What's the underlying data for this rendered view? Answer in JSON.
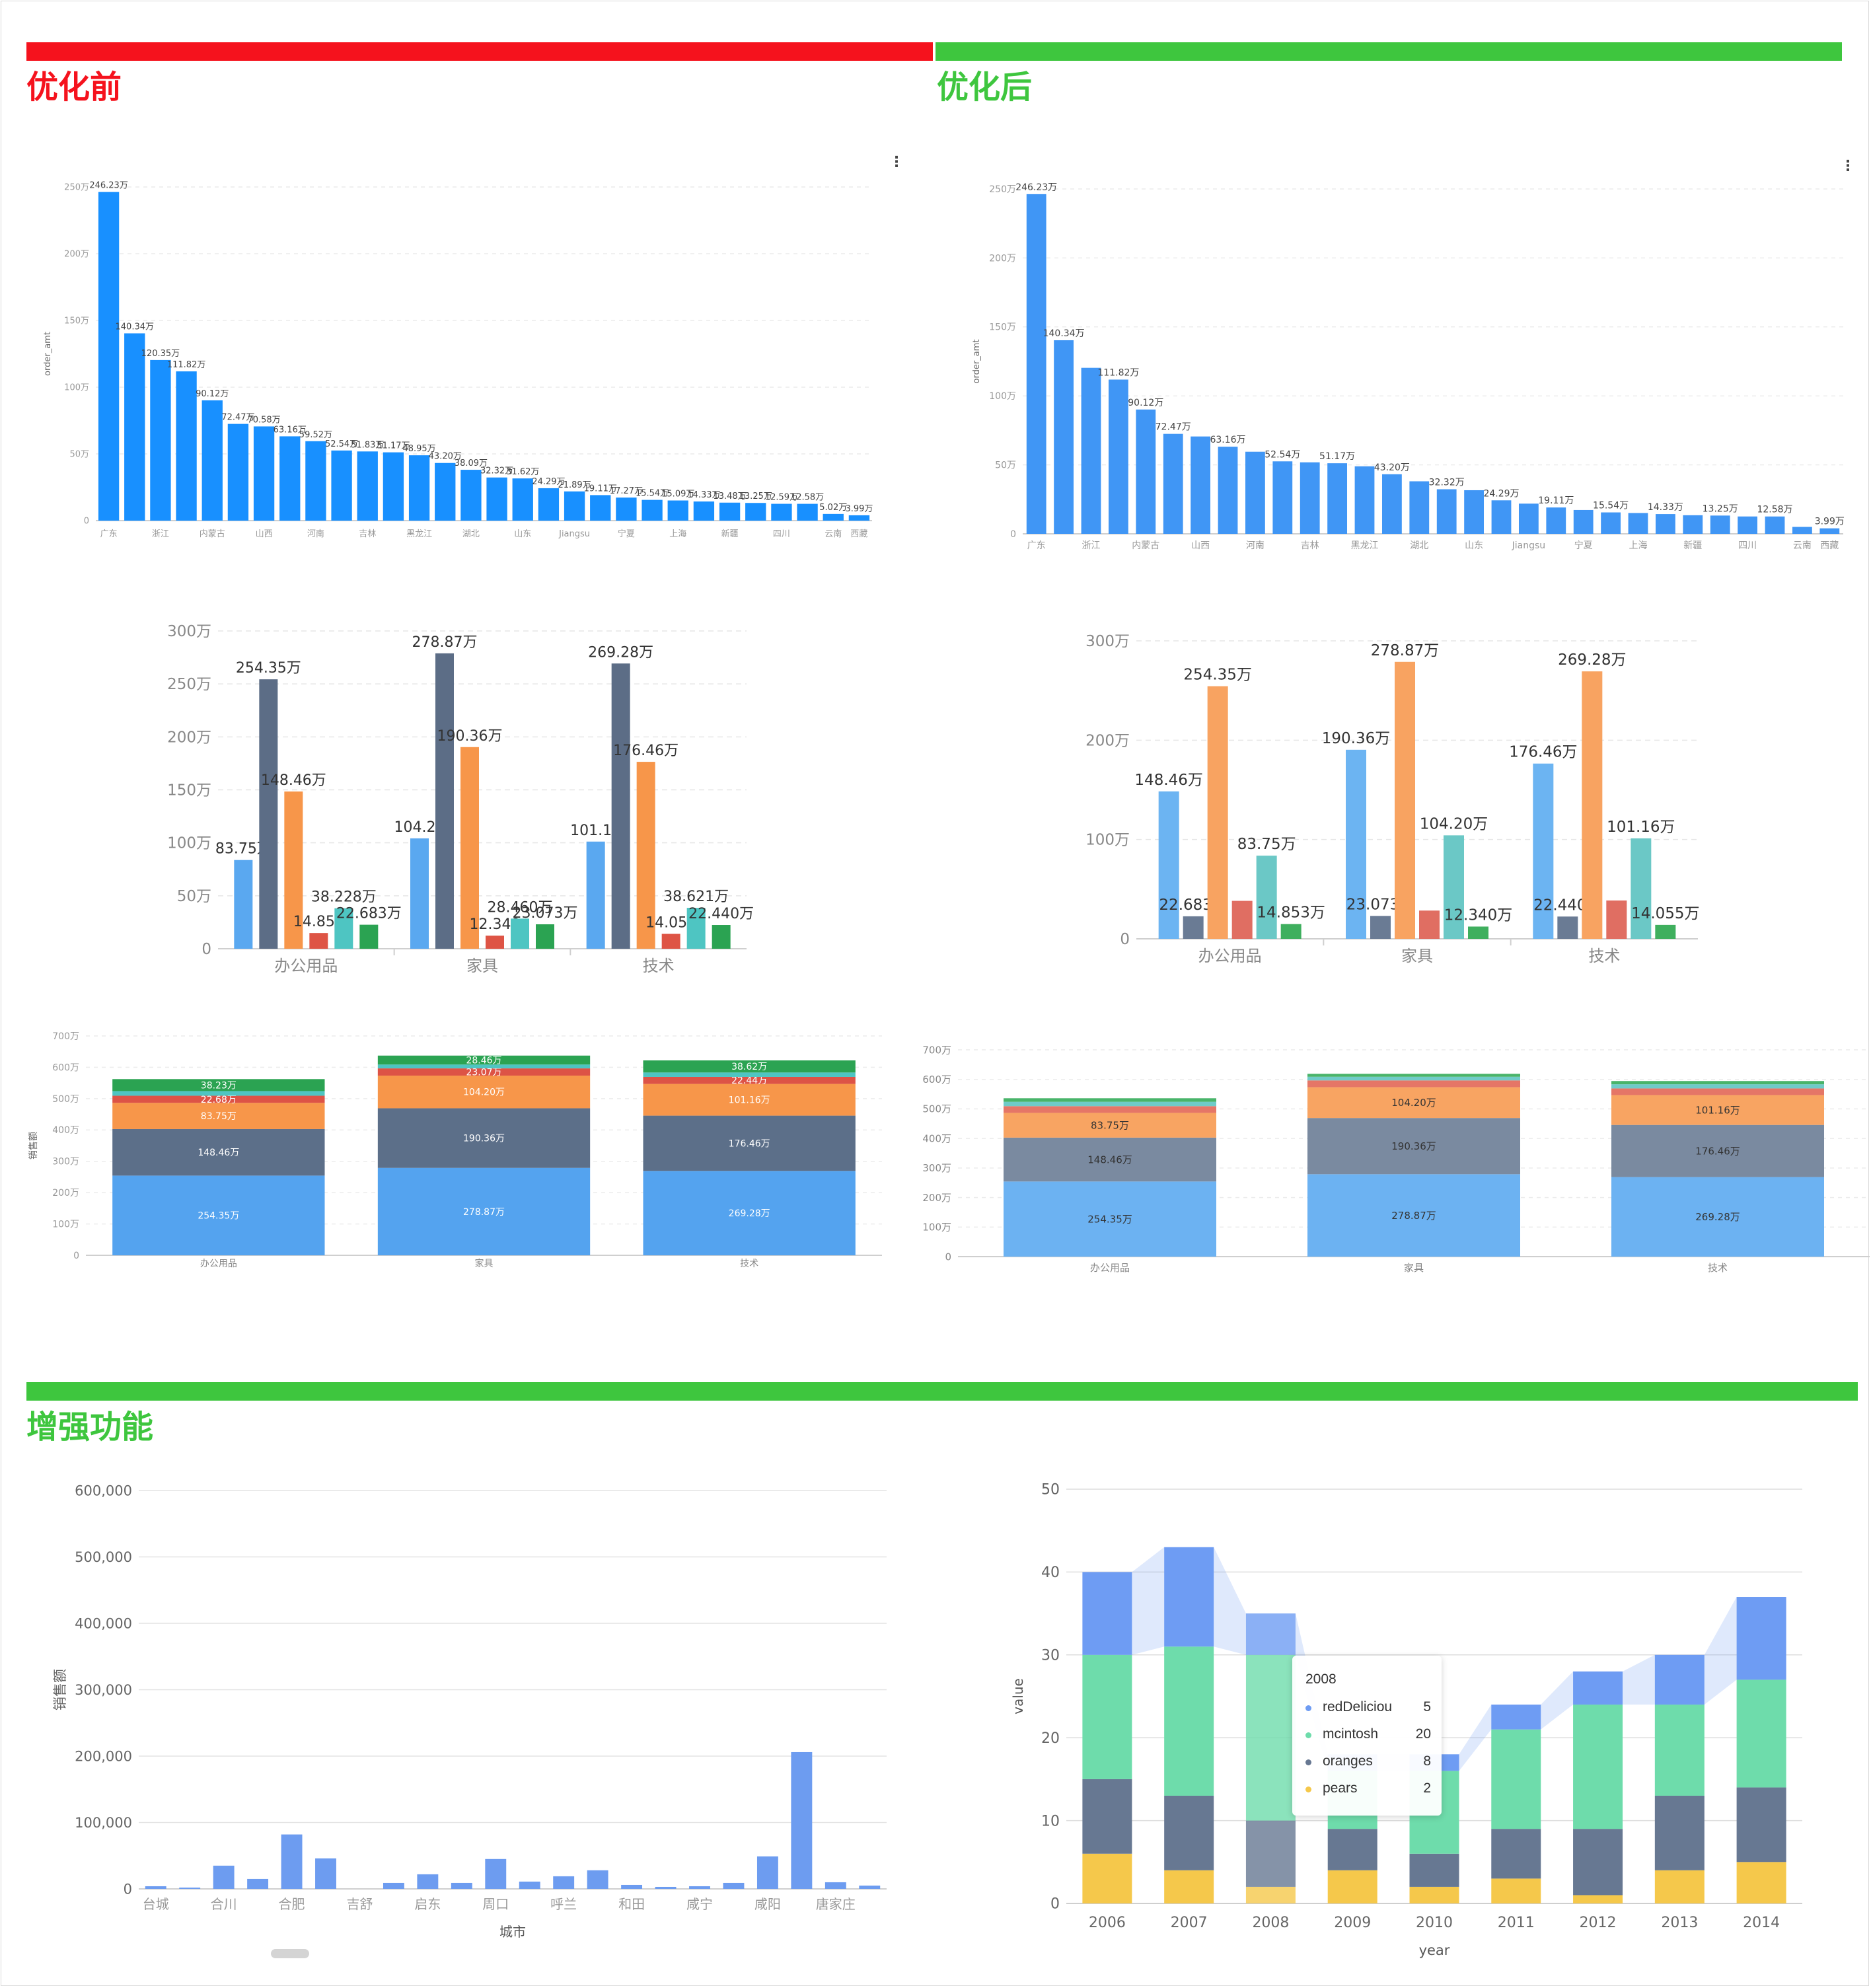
{
  "sections": {
    "before": {
      "title": "优化前",
      "color": "#f5121d"
    },
    "after": {
      "title": "优化后",
      "color": "#3ec63e"
    },
    "enhance": {
      "title": "增强功能",
      "color": "#3ec63e"
    }
  },
  "chart_data": [
    {
      "id": "before-province",
      "panel": "优化前",
      "type": "bar",
      "ylabel": "order_amt",
      "ylim": [
        0,
        2500000
      ],
      "yticks": [
        "0",
        "50万",
        "100万",
        "150万",
        "200万",
        "250万"
      ],
      "categories": [
        "广东",
        "",
        "浙江",
        "",
        "内蒙古",
        "",
        "山西",
        "",
        "河南",
        "",
        "吉林",
        "",
        "黑龙江",
        "",
        "湖北",
        "",
        "山东",
        "",
        "Jiangsu",
        "",
        "宁夏",
        "",
        "上海",
        "",
        "新疆",
        "",
        "四川",
        "",
        "云南",
        "西藏"
      ],
      "values": [
        2462300,
        1403400,
        1203500,
        1118200,
        901200,
        724700,
        705800,
        631600,
        595200,
        525400,
        518300,
        511700,
        489500,
        432000,
        380900,
        323200,
        316200,
        242900,
        218900,
        191100,
        172700,
        155400,
        150900,
        143300,
        134800,
        132500,
        125900,
        125800,
        50200,
        39900
      ],
      "labels": [
        "246.23万",
        "140.34万",
        "120.35万",
        "111.82万",
        "90.12万",
        "72.47万",
        "70.58万",
        "63.16万",
        "59.52万",
        "52.54万",
        "51.83万",
        "51.17万",
        "48.95万",
        "43.20万",
        "38.09万",
        "32.32万",
        "31.62万",
        "24.29万",
        "21.89万",
        "19.11万",
        "17.27万",
        "15.54万",
        "15.09万",
        "14.33万",
        "13.48万",
        "13.25万",
        "12.59万",
        "12.58万",
        "5.02万",
        "3.99万"
      ],
      "color": "#1890ff"
    },
    {
      "id": "after-province",
      "panel": "优化后",
      "type": "bar",
      "ylabel": "order_amt",
      "ylim": [
        0,
        2500000
      ],
      "yticks": [
        "0",
        "50万",
        "100万",
        "150万",
        "200万",
        "250万"
      ],
      "categories": [
        "广东",
        "",
        "浙江",
        "",
        "内蒙古",
        "",
        "山西",
        "",
        "河南",
        "",
        "吉林",
        "",
        "黑龙江",
        "",
        "湖北",
        "",
        "山东",
        "",
        "Jiangsu",
        "",
        "宁夏",
        "",
        "上海",
        "",
        "新疆",
        "",
        "四川",
        "",
        "云南",
        "西藏"
      ],
      "values": [
        2462300,
        1403400,
        1203500,
        1118200,
        901200,
        724700,
        705800,
        631600,
        595200,
        525400,
        518300,
        511700,
        489500,
        432000,
        380900,
        323200,
        316200,
        242900,
        218900,
        191100,
        172700,
        155400,
        150900,
        143300,
        134800,
        132500,
        125900,
        125800,
        50200,
        39900
      ],
      "labels": [
        "246.23万",
        "140.34万",
        "",
        "111.82万",
        "90.12万",
        "72.47万",
        "",
        "63.16万",
        "",
        "52.54万",
        "",
        "51.17万",
        "",
        "43.20万",
        "",
        "32.32万",
        "",
        "24.29万",
        "",
        "19.11万",
        "",
        "15.54万",
        "",
        "14.33万",
        "",
        "13.25万",
        "",
        "12.58万",
        "",
        "3.99万"
      ],
      "color": "#4096f5"
    },
    {
      "id": "before-grouped",
      "panel": "优化前",
      "type": "bar",
      "ylim": [
        0,
        3000000
      ],
      "yticks": [
        "0",
        "50万",
        "100万",
        "150万",
        "200万",
        "250万",
        "300万"
      ],
      "categories": [
        "办公用品",
        "家具",
        "技术"
      ],
      "series": [
        {
          "color": "#5aa8f0",
          "values": [
            837500,
            1042000,
            1011600
          ],
          "labels": [
            "83.75万",
            "104.20",
            "101.16"
          ]
        },
        {
          "color": "#5c6d86",
          "values": [
            2543500,
            2788700,
            2692800
          ],
          "labels": [
            "254.35万",
            "278.87万",
            "269.28万"
          ]
        },
        {
          "color": "#f7964a",
          "values": [
            1484600,
            1903600,
            1764600
          ],
          "labels": [
            "148.46万",
            "190.36万",
            "176.46万"
          ]
        },
        {
          "color": "#de5445",
          "values": [
            148530,
            123400,
            140550
          ],
          "labels": [
            "14.853",
            "12.340",
            "14.055"
          ]
        },
        {
          "color": "#4ec5c2",
          "values": [
            382280,
            284600,
            386210
          ],
          "labels": [
            "38.228万",
            "28.460万",
            "38.621万"
          ]
        },
        {
          "color": "#2ba352",
          "values": [
            226830,
            230730,
            224400
          ],
          "labels": [
            "22.683万",
            "23.073万",
            "22.440万"
          ]
        }
      ]
    },
    {
      "id": "after-grouped",
      "panel": "优化后",
      "type": "bar",
      "ylim": [
        0,
        3000000
      ],
      "yticks": [
        "0",
        "100万",
        "200万",
        "300万"
      ],
      "categories": [
        "办公用品",
        "家具",
        "技术"
      ],
      "series": [
        {
          "color": "#6cb4f2",
          "values": [
            1484600,
            1903600,
            1764600
          ],
          "labels": [
            "148.46万",
            "190.36万",
            "176.46万"
          ]
        },
        {
          "color": "#6a7b94",
          "values": [
            226830,
            230730,
            224400
          ],
          "labels": [
            "22.683万",
            "23.073万",
            "22.440万"
          ]
        },
        {
          "color": "#f8a361",
          "values": [
            2543500,
            2788700,
            2692800
          ],
          "labels": [
            "254.35万",
            "278.87万",
            "269.28万"
          ]
        },
        {
          "color": "#e06e62",
          "values": [
            382280,
            284600,
            386210
          ],
          "labels": [
            "",
            "",
            ""
          ]
        },
        {
          "color": "#6bc8c6",
          "values": [
            837500,
            1042000,
            1011600
          ],
          "labels": [
            "83.75万",
            "104.20万",
            "101.16万"
          ]
        },
        {
          "color": "#3faf5e",
          "values": [
            148530,
            123400,
            140550
          ],
          "labels": [
            "14.853万",
            "12.340万",
            "14.055万"
          ]
        }
      ]
    },
    {
      "id": "before-stacked",
      "panel": "优化前",
      "type": "bar",
      "stacked": true,
      "ylabel": "销售额",
      "ylim": [
        0,
        7000000
      ],
      "yticks": [
        "0",
        "100万",
        "200万",
        "300万",
        "400万",
        "500万",
        "600万",
        "700万"
      ],
      "categories": [
        "办公用品",
        "家具",
        "技术"
      ],
      "series": [
        {
          "color": "#54a3ef",
          "values": [
            2543500,
            2788700,
            2692800
          ],
          "labels": [
            "254.35万",
            "278.87万",
            "269.28万"
          ]
        },
        {
          "color": "#5c6f89",
          "values": [
            1484600,
            1903600,
            1764600
          ],
          "labels": [
            "148.46万",
            "190.36万",
            "176.46万"
          ]
        },
        {
          "color": "#f7964a",
          "values": [
            837500,
            1042000,
            1011600
          ],
          "labels": [
            "83.75万",
            "104.20万",
            "101.16万"
          ]
        },
        {
          "color": "#dd5346",
          "values": [
            226830,
            230730,
            224400
          ],
          "labels": [
            "22.68万",
            "23.07万",
            "22.44万"
          ]
        },
        {
          "color": "#4ec5c2",
          "values": [
            148530,
            123400,
            140550
          ],
          "labels": [
            "",
            "",
            ""
          ]
        },
        {
          "color": "#2ba352",
          "values": [
            382280,
            284600,
            386210
          ],
          "labels": [
            "38.23万",
            "28.46万",
            "38.62万"
          ]
        }
      ]
    },
    {
      "id": "after-stacked",
      "panel": "优化后",
      "type": "bar",
      "stacked": true,
      "ylim": [
        0,
        7000000
      ],
      "yticks": [
        "0",
        "100万",
        "200万",
        "300万",
        "400万",
        "500万",
        "600万",
        "700万"
      ],
      "categories": [
        "办公用品",
        "家具",
        "技术"
      ],
      "series": [
        {
          "color": "#6cb2f2",
          "values": [
            2543500,
            2788700,
            2692800
          ],
          "labels": [
            "254.35万",
            "278.87万",
            "269.28万"
          ]
        },
        {
          "color": "#7a8aa0",
          "values": [
            1484600,
            1903600,
            1764600
          ],
          "labels": [
            "148.46万",
            "190.36万",
            "176.46万"
          ]
        },
        {
          "color": "#f8a462",
          "values": [
            837500,
            1042000,
            1011600
          ],
          "labels": [
            "83.75万",
            "104.20万",
            "101.16万"
          ]
        },
        {
          "color": "#e57667",
          "values": [
            226830,
            230730,
            224400
          ],
          "labels": [
            "",
            "",
            ""
          ]
        },
        {
          "color": "#6fcbc8",
          "values": [
            148530,
            123400,
            140550
          ],
          "labels": [
            "",
            "",
            ""
          ]
        },
        {
          "color": "#49b46a",
          "values": [
            120000,
            100000,
            110000
          ],
          "labels": [
            "",
            "",
            ""
          ]
        }
      ]
    },
    {
      "id": "enhance-city",
      "panel": "增强功能",
      "type": "bar",
      "xlabel": "城市",
      "ylabel": "销售额",
      "ylim": [
        0,
        600000
      ],
      "yticks": [
        "0",
        "100,000",
        "200,000",
        "300,000",
        "400,000",
        "500,000",
        "600,000"
      ],
      "categories": [
        "台城",
        "",
        "合川",
        "",
        "合肥",
        "",
        "吉舒",
        "",
        "启东",
        "",
        "周口",
        "",
        "呼兰",
        "",
        "和田",
        "",
        "咸宁",
        "",
        "咸阳",
        "",
        "唐家庄",
        ""
      ],
      "values": [
        4000,
        2000,
        35000,
        15000,
        82000,
        46000,
        0,
        9000,
        22000,
        9000,
        45000,
        11000,
        19000,
        28000,
        6000,
        3000,
        4000,
        9000,
        49000,
        206000,
        10000,
        5000
      ],
      "color": "#6d9cf0"
    },
    {
      "id": "enhance-fruit",
      "panel": "增强功能",
      "type": "bar",
      "stacked": true,
      "xlabel": "year",
      "ylabel": "value",
      "ylim": [
        0,
        50
      ],
      "yticks": [
        "0",
        "10",
        "20",
        "30",
        "40",
        "50"
      ],
      "categories": [
        "2006",
        "2007",
        "2008",
        "2009",
        "2010",
        "2011",
        "2012",
        "2013",
        "2014"
      ],
      "series": [
        {
          "name": "pears",
          "color": "#f5c84b",
          "values": [
            6,
            4,
            2,
            4,
            2,
            3,
            1,
            4,
            5
          ]
        },
        {
          "name": "oranges",
          "color": "#677892",
          "values": [
            9,
            9,
            8,
            5,
            4,
            6,
            8,
            9,
            9
          ]
        },
        {
          "name": "mcintosh",
          "color": "#6edcab",
          "values": [
            15,
            18,
            20,
            7,
            10,
            12,
            15,
            11,
            13
          ]
        },
        {
          "name": "redDelicious",
          "color": "#6e9cf3",
          "values": [
            10,
            12,
            5,
            2,
            2,
            3,
            4,
            6,
            10
          ]
        }
      ],
      "tooltip": {
        "title": "2008",
        "rows": [
          {
            "name": "redDeliciou",
            "value": "5",
            "color": "#6e9cf3"
          },
          {
            "name": "mcintosh",
            "value": "20",
            "color": "#6edcab"
          },
          {
            "name": "oranges",
            "value": "8",
            "color": "#677892"
          },
          {
            "name": "pears",
            "value": "2",
            "color": "#f5c84b"
          }
        ]
      }
    }
  ]
}
